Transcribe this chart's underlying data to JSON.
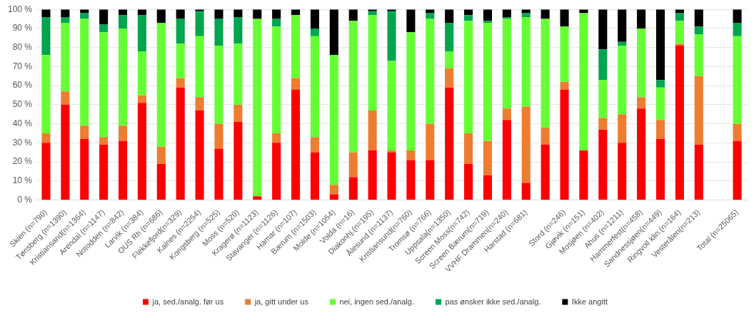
{
  "chart_data": {
    "type": "bar",
    "stacked": true,
    "categories": [
      "Skien (n=790)",
      "Tønsberg (n=1390)",
      "Kristiansand(n=1364)",
      "Arendal (n=1147)",
      "Notodden (n=842)",
      "Larvik (n=384)",
      "OUS Rh (n=686)",
      "Flekkefjord(n=329)",
      "Kalnes (n=2254)",
      "Kongsberg (n=525)",
      "Moss (n=520)",
      "Kragerø (n=1123)",
      "Stavanger (n=1126)",
      "Hamar (n=107)",
      "Bærum (n=1503)",
      "Molde (n=1054)",
      "Volda (n=16)",
      "Diakonhj.(n=195)",
      "Ålesund (n=1137)",
      "Kristiansund(n=760)",
      "Tromsø (n=766)",
      "Uppsala(n=1350)",
      "Screen Moss(n=742)",
      "Screen Bærum(n=719)",
      "VVHF Drammen(n=240)",
      "Harstad (n=681)",
      null,
      "Stord (n=246)",
      "Gjøvik (n=151)",
      "Mosjøen (n=402)",
      "Ahus (n=1211)",
      "Hammerfest(n=458)",
      "Sandnessjøen(n=449)",
      "Ringvoll klin.(n=164)",
      "Vesterålen(n=213)",
      null,
      "Total (n=25065)"
    ],
    "series": [
      {
        "name": "ja, sed./analg. før us",
        "color": "#ff0000",
        "values": [
          30,
          50,
          32,
          29,
          31,
          51,
          19,
          59,
          47,
          27,
          41,
          2,
          30,
          58,
          25,
          3,
          12,
          26,
          25,
          21,
          21,
          59,
          19,
          13,
          42,
          9,
          29,
          58,
          26,
          37,
          30,
          48,
          32,
          81,
          29,
          null,
          31
        ]
      },
      {
        "name": "ja, gitt under us",
        "color": "#ed7d31",
        "values": [
          5,
          7,
          7,
          4,
          8,
          4,
          9,
          5,
          7,
          13,
          9,
          0,
          5,
          6,
          8,
          5,
          13,
          21,
          1,
          5,
          19,
          10,
          16,
          18,
          6,
          40,
          9,
          4,
          0,
          6,
          15,
          6,
          10,
          1,
          36,
          null,
          9
        ]
      },
      {
        "name": "nei, ingen sed./analg.",
        "color": "#66ff33",
        "values": [
          41,
          36,
          56,
          55,
          51,
          23,
          65,
          18,
          32,
          41,
          32,
          93,
          56,
          33,
          53,
          68,
          69,
          50,
          47,
          62,
          55,
          9,
          59,
          62,
          47,
          47,
          57,
          29,
          72,
          20,
          36,
          36,
          17,
          12,
          22,
          null,
          46
        ]
      },
      {
        "name": "pas ønsker ikke sed./analg.",
        "color": "#00a550",
        "values": [
          20,
          3,
          3,
          4,
          7,
          19,
          0,
          13,
          13,
          14,
          14,
          0,
          4,
          0,
          4,
          0,
          0,
          2,
          26,
          0,
          3,
          15,
          3,
          1,
          1,
          2,
          0,
          0,
          0,
          16,
          2,
          0,
          4,
          4,
          4,
          null,
          7
        ]
      },
      {
        "name": "Ikke angitt",
        "color": "#000000",
        "values": [
          4,
          4,
          2,
          8,
          3,
          3,
          7,
          5,
          1,
          5,
          4,
          5,
          5,
          3,
          10,
          24,
          6,
          1,
          1,
          12,
          2,
          7,
          3,
          6,
          4,
          2,
          5,
          9,
          2,
          21,
          17,
          10,
          37,
          2,
          9,
          null,
          7
        ]
      }
    ],
    "ylim": [
      0,
      100
    ],
    "yticks": [
      {
        "value": 0,
        "label": "0 %"
      },
      {
        "value": 10,
        "label": "10 %"
      },
      {
        "value": 20,
        "label": "20 %"
      },
      {
        "value": 30,
        "label": "30 %"
      },
      {
        "value": 40,
        "label": "40 %"
      },
      {
        "value": 50,
        "label": "50 %"
      },
      {
        "value": 60,
        "label": "60 %"
      },
      {
        "value": 70,
        "label": "70 %"
      },
      {
        "value": 80,
        "label": "80 %"
      },
      {
        "value": 90,
        "label": "90 %"
      },
      {
        "value": 100,
        "label": "100 %"
      }
    ],
    "grid": "y",
    "legend": "bottom"
  }
}
